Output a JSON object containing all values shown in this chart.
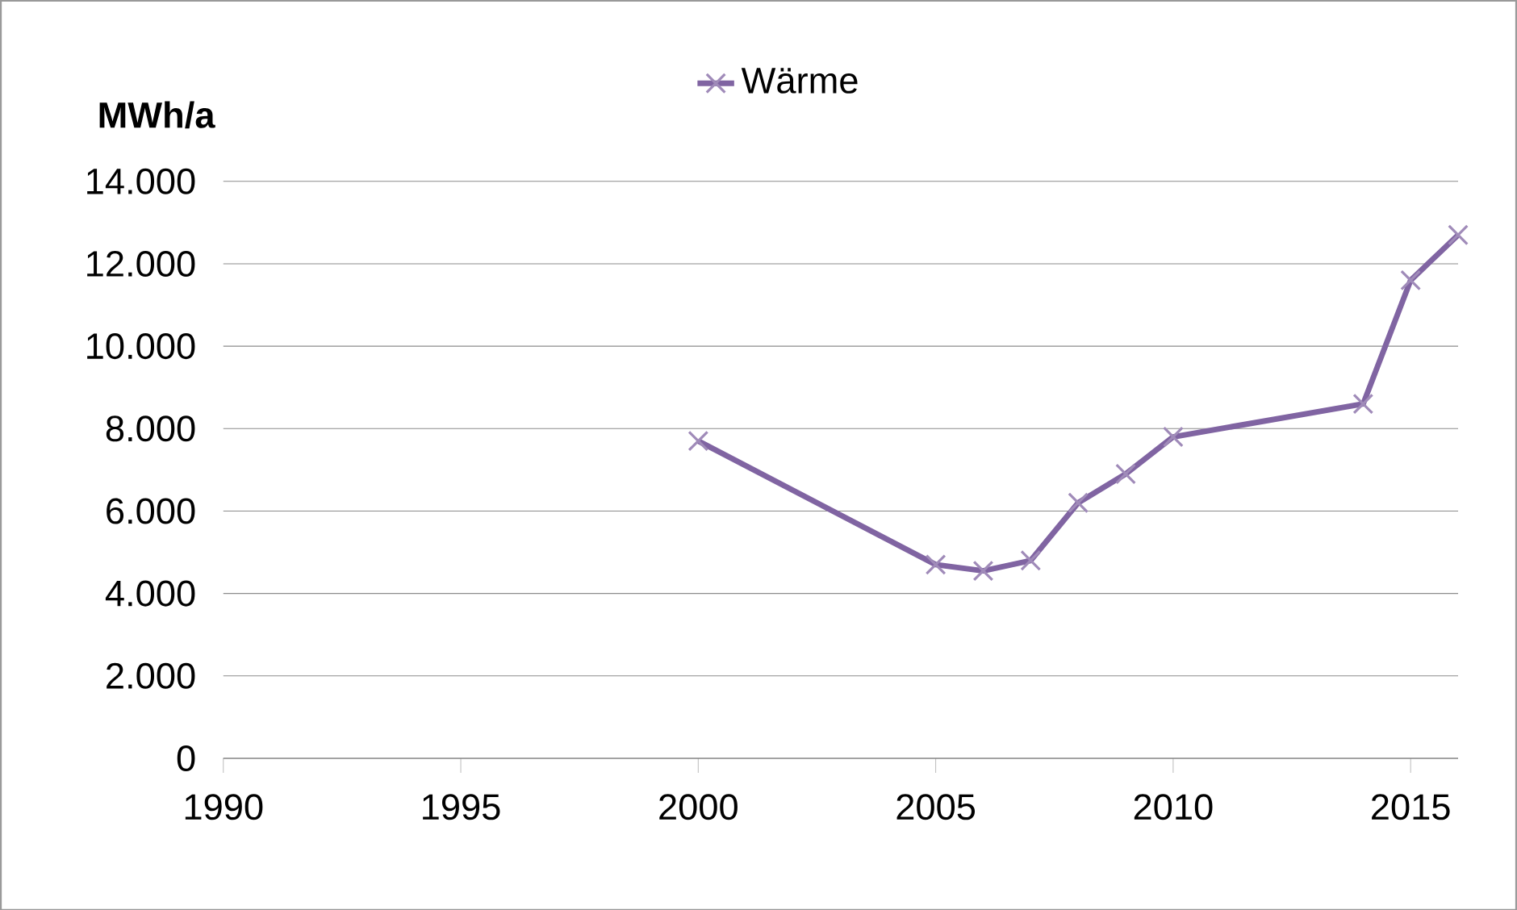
{
  "chart_data": {
    "type": "line",
    "ylabel": "MWh/a",
    "x": [
      2000,
      2005,
      2006,
      2007,
      2008,
      2009,
      2010,
      2014,
      2015,
      2016
    ],
    "series": [
      {
        "name": "Wärme",
        "color": "#8064a2",
        "values": [
          7700,
          4700,
          4550,
          4800,
          6200,
          6900,
          7800,
          8600,
          11600,
          12700
        ]
      }
    ],
    "xlim": [
      1990,
      2016
    ],
    "ylim": [
      0,
      14000
    ],
    "xticks": [
      1990,
      1995,
      2000,
      2005,
      2010,
      2015
    ],
    "yticks": [
      0,
      {
        "value": 2000,
        "label": "2.000"
      },
      {
        "value": 4000,
        "label": "4.000"
      },
      {
        "value": 6000,
        "label": "6.000"
      },
      {
        "value": 8000,
        "label": "8.000"
      },
      {
        "value": 10000,
        "label": "10.000"
      },
      {
        "value": 12000,
        "label": "12.000"
      },
      {
        "value": 14000,
        "label": "14.000"
      }
    ],
    "grid": "y",
    "legend": "top",
    "marker": "cross",
    "line_style": "solid"
  }
}
